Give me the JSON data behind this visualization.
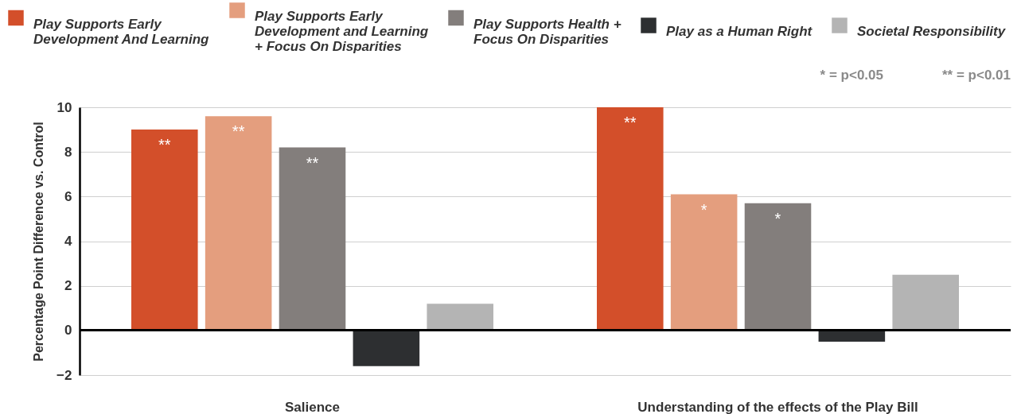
{
  "chart_data": {
    "type": "bar",
    "ylabel": "Percentage Point Difference vs. Control",
    "categories": [
      "Salience",
      "Understanding of the effects of the Play Bill"
    ],
    "series": [
      {
        "name": "Play Supports Early Development And Learning",
        "color": "#d34f2a",
        "values": [
          9.0,
          10.0
        ],
        "value_labels": [
          "**",
          "**"
        ]
      },
      {
        "name": "Play Supports Early Development and Learning + Focus On Disparities",
        "color": "#e49e7e",
        "values": [
          9.6,
          6.1
        ],
        "value_labels": [
          "**",
          "*"
        ]
      },
      {
        "name": "Play Supports Health + Focus On Disparities",
        "color": "#837e7c",
        "values": [
          8.2,
          5.7
        ],
        "value_labels": [
          "**",
          "*"
        ]
      },
      {
        "name": "Play as a Human Right",
        "color": "#2d2f31",
        "values": [
          -1.6,
          -0.5
        ],
        "value_labels": [
          null,
          null
        ]
      },
      {
        "name": "Societal Responsibility",
        "color": "#b4b4b4",
        "values": [
          1.2,
          2.5
        ],
        "value_labels": [
          null,
          null
        ]
      }
    ],
    "ylim": [
      -2,
      10
    ],
    "yticks": [
      -2,
      0,
      2,
      4,
      6,
      8,
      10
    ],
    "grid": "y",
    "legend": "top",
    "ref_lines": [
      {
        "axis": "y",
        "value": 0,
        "color": "#000000"
      }
    ],
    "annotations": [
      "* = p<0.05",
      "** = p<0.01"
    ]
  }
}
